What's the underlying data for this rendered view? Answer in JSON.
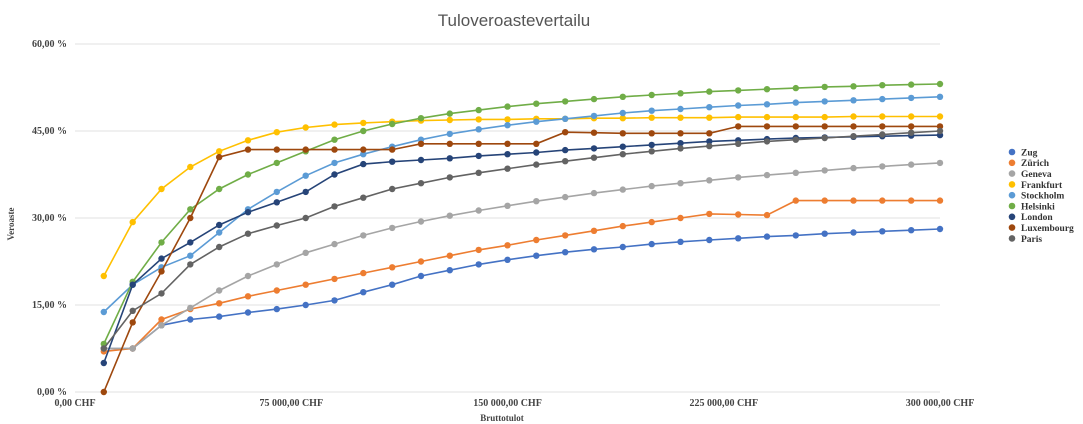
{
  "chart_data": {
    "type": "line",
    "title": "Tuloveroastevertailu",
    "xlabel": "Bruttotulot",
    "ylabel": "Veroaste",
    "xlim": [
      0,
      300000
    ],
    "ylim": [
      0,
      60
    ],
    "x_ticks": [
      0,
      75000,
      150000,
      225000,
      300000
    ],
    "x_tick_labels": [
      "0,00 CHF",
      "75 000,00 CHF",
      "150 000,00 CHF",
      "225 000,00 CHF",
      "300 000,00 CHF"
    ],
    "y_ticks": [
      0,
      15,
      30,
      45,
      60
    ],
    "y_tick_labels": [
      "0,00 %",
      "15,00 %",
      "30,00 %",
      "45,00 %",
      "60,00 %"
    ],
    "grid": true,
    "legend_position": "right",
    "x": [
      10000,
      20000,
      30000,
      40000,
      50000,
      60000,
      70000,
      80000,
      90000,
      100000,
      110000,
      120000,
      130000,
      140000,
      150000,
      160000,
      170000,
      180000,
      190000,
      200000,
      210000,
      220000,
      230000,
      240000,
      250000,
      260000,
      270000,
      280000,
      290000,
      300000
    ],
    "series": [
      {
        "name": "Zug",
        "color": "#4472c4",
        "values": [
          7.5,
          7.5,
          11.5,
          12.5,
          13.0,
          13.7,
          14.3,
          15.0,
          15.8,
          17.2,
          18.5,
          20.0,
          21.0,
          22.0,
          22.8,
          23.5,
          24.1,
          24.6,
          25.0,
          25.5,
          25.9,
          26.2,
          26.5,
          26.8,
          27.0,
          27.3,
          27.5,
          27.7,
          27.9,
          28.1
        ]
      },
      {
        "name": "Zürich",
        "color": "#ed7d31",
        "values": [
          7.0,
          7.5,
          12.5,
          14.3,
          15.3,
          16.5,
          17.5,
          18.5,
          19.5,
          20.5,
          21.5,
          22.5,
          23.5,
          24.5,
          25.3,
          26.2,
          27.0,
          27.8,
          28.6,
          29.3,
          30.0,
          30.7,
          30.6,
          30.5,
          33.0,
          33.0,
          33.0,
          33.0,
          33.0,
          33.0
        ]
      },
      {
        "name": "Geneva",
        "color": "#a5a5a5",
        "values": [
          7.5,
          7.5,
          11.5,
          14.5,
          17.5,
          20.0,
          22.0,
          24.0,
          25.5,
          27.0,
          28.3,
          29.4,
          30.4,
          31.3,
          32.1,
          32.9,
          33.6,
          34.3,
          34.9,
          35.5,
          36.0,
          36.5,
          37.0,
          37.4,
          37.8,
          38.2,
          38.6,
          38.9,
          39.2,
          39.5
        ]
      },
      {
        "name": "Frankfurt",
        "color": "#ffc000",
        "values": [
          20.0,
          29.3,
          35.0,
          38.8,
          41.5,
          43.4,
          44.8,
          45.6,
          46.1,
          46.4,
          46.6,
          46.8,
          46.9,
          47.0,
          47.0,
          47.1,
          47.1,
          47.2,
          47.2,
          47.3,
          47.3,
          47.3,
          47.4,
          47.4,
          47.4,
          47.4,
          47.5,
          47.5,
          47.5,
          47.5
        ]
      },
      {
        "name": "Stockholm",
        "color": "#5b9bd5",
        "values": [
          13.8,
          18.5,
          21.5,
          23.5,
          27.5,
          31.5,
          34.5,
          37.3,
          39.5,
          41.0,
          42.3,
          43.5,
          44.5,
          45.3,
          46.0,
          46.6,
          47.1,
          47.6,
          48.1,
          48.5,
          48.8,
          49.1,
          49.4,
          49.6,
          49.9,
          50.1,
          50.3,
          50.5,
          50.7,
          50.9
        ]
      },
      {
        "name": "Helsinki",
        "color": "#70ad47",
        "values": [
          8.3,
          19.0,
          25.8,
          31.5,
          35.0,
          37.5,
          39.5,
          41.5,
          43.5,
          45.0,
          46.2,
          47.2,
          48.0,
          48.6,
          49.2,
          49.7,
          50.1,
          50.5,
          50.9,
          51.2,
          51.5,
          51.8,
          52.0,
          52.2,
          52.4,
          52.6,
          52.7,
          52.9,
          53.0,
          53.1
        ]
      },
      {
        "name": "London",
        "color": "#264478",
        "values": [
          5.0,
          18.5,
          23.0,
          25.8,
          28.8,
          31.0,
          32.7,
          34.5,
          37.5,
          39.3,
          39.7,
          40.0,
          40.3,
          40.7,
          41.0,
          41.3,
          41.7,
          42.0,
          42.3,
          42.6,
          42.9,
          43.2,
          43.4,
          43.6,
          43.8,
          43.9,
          44.0,
          44.1,
          44.2,
          44.3
        ]
      },
      {
        "name": "Luxembourg",
        "color": "#9e480e",
        "values": [
          0.0,
          12.0,
          20.8,
          30.0,
          40.5,
          41.8,
          41.8,
          41.8,
          41.8,
          41.8,
          41.8,
          42.8,
          42.8,
          42.8,
          42.8,
          42.8,
          44.8,
          44.7,
          44.6,
          44.6,
          44.6,
          44.6,
          45.8,
          45.8,
          45.8,
          45.8,
          45.8,
          45.8,
          45.8,
          45.8
        ]
      },
      {
        "name": "Paris",
        "color": "#636363",
        "values": [
          7.5,
          14.0,
          17.0,
          22.0,
          25.0,
          27.3,
          28.7,
          30.0,
          32.0,
          33.5,
          35.0,
          36.0,
          37.0,
          37.8,
          38.5,
          39.2,
          39.8,
          40.4,
          41.0,
          41.5,
          42.0,
          42.4,
          42.8,
          43.2,
          43.5,
          43.8,
          44.1,
          44.4,
          44.7,
          45.0
        ]
      }
    ]
  }
}
